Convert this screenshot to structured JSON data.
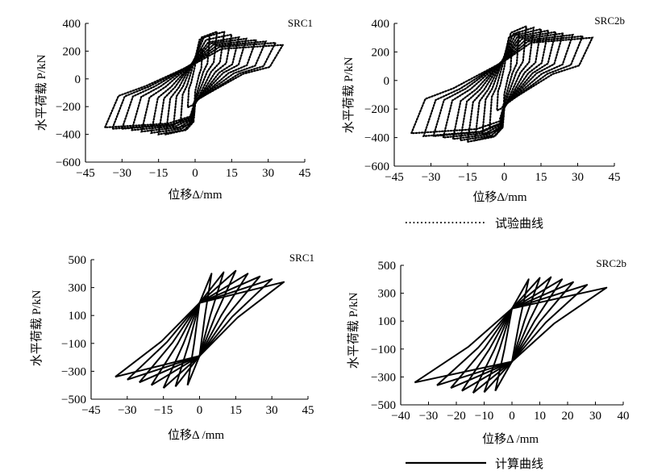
{
  "chart_data": [
    {
      "type": "line",
      "panel": "top-left",
      "title": "SRC1",
      "xlabel": "位移Δ/mm",
      "ylabel": "水平荷载 P/kN",
      "xlim": [
        -45,
        45
      ],
      "ylim": [
        -600,
        400
      ],
      "xticks": [
        "−45",
        "−30",
        "−15",
        "0",
        "15",
        "30",
        "45"
      ],
      "yticks": [
        "−600",
        "−400",
        "−200",
        "0",
        "200",
        "400"
      ],
      "style": "dotted",
      "series_name": "试验曲线",
      "cycles": [
        {
          "xmax": 3,
          "xmin": -3,
          "fpos": 215,
          "fneg": -205
        },
        {
          "xmax": 6,
          "xmin": -6,
          "fpos": 320,
          "fneg": -320
        },
        {
          "xmax": 9,
          "xmin": -9,
          "fpos": 340,
          "fneg": -360
        },
        {
          "xmax": 12,
          "xmin": -12,
          "fpos": 340,
          "fneg": -400
        },
        {
          "xmax": 15,
          "xmin": -15,
          "fpos": 320,
          "fneg": -400
        },
        {
          "xmax": 18,
          "xmin": -18,
          "fpos": 300,
          "fneg": -390
        },
        {
          "xmax": 21,
          "xmin": -22,
          "fpos": 290,
          "fneg": -380
        },
        {
          "xmax": 25,
          "xmin": -26,
          "fpos": 280,
          "fneg": -370
        },
        {
          "xmax": 29,
          "xmin": -30,
          "fpos": 270,
          "fneg": -360
        },
        {
          "xmax": 33,
          "xmin": -34,
          "fpos": 260,
          "fneg": -360
        },
        {
          "xmax": 36,
          "xmin": -37,
          "fpos": 245,
          "fneg": -350
        }
      ]
    },
    {
      "type": "line",
      "panel": "top-right",
      "title": "SRC2b",
      "xlabel": "位移Δ/mm",
      "ylabel": "水平荷载 P/kN",
      "xlim": [
        -45,
        45
      ],
      "ylim": [
        -600,
        400
      ],
      "xticks": [
        "−45",
        "−30",
        "−15",
        "0",
        "15",
        "30",
        "45"
      ],
      "yticks": [
        "−600",
        "−400",
        "−200",
        "0",
        "200",
        "400"
      ],
      "style": "dotted",
      "series_name": "试验曲线",
      "cycles": [
        {
          "xmax": 3,
          "xmin": -3,
          "fpos": 210,
          "fneg": -210
        },
        {
          "xmax": 6,
          "xmin": -6,
          "fpos": 340,
          "fneg": -330
        },
        {
          "xmax": 9,
          "xmin": -9,
          "fpos": 380,
          "fneg": -380
        },
        {
          "xmax": 12,
          "xmin": -12,
          "fpos": 370,
          "fneg": -420
        },
        {
          "xmax": 15,
          "xmin": -15,
          "fpos": 360,
          "fneg": -430
        },
        {
          "xmax": 18,
          "xmin": -18,
          "fpos": 350,
          "fneg": -420
        },
        {
          "xmax": 21,
          "xmin": -21,
          "fpos": 340,
          "fneg": -410
        },
        {
          "xmax": 24,
          "xmin": -25,
          "fpos": 330,
          "fneg": -400
        },
        {
          "xmax": 28,
          "xmin": -29,
          "fpos": 320,
          "fneg": -390
        },
        {
          "xmax": 32,
          "xmin": -33,
          "fpos": 310,
          "fneg": -390
        },
        {
          "xmax": 36,
          "xmin": -38,
          "fpos": 300,
          "fneg": -370
        }
      ]
    },
    {
      "type": "line",
      "panel": "bottom-left",
      "title": "SRC1",
      "xlabel": "位移Δ /mm",
      "ylabel": "水平荷载 P/kN",
      "xlim": [
        -45,
        45
      ],
      "ylim": [
        -500,
        500
      ],
      "xticks": [
        "−45",
        "−30",
        "−15",
        "0",
        "15",
        "30",
        "45"
      ],
      "yticks": [
        "500",
        "300",
        "100",
        "−100",
        "−300",
        "−500"
      ],
      "style": "solid",
      "series_name": "计算曲线",
      "cycles": [
        {
          "xmax": 5,
          "xmin": -5,
          "fpos": 400,
          "fneg": -400
        },
        {
          "xmax": 10,
          "xmin": -10,
          "fpos": 410,
          "fneg": -410
        },
        {
          "xmax": 15,
          "xmin": -15,
          "fpos": 420,
          "fneg": -420
        },
        {
          "xmax": 20,
          "xmin": -20,
          "fpos": 400,
          "fneg": -400
        },
        {
          "xmax": 25,
          "xmin": -25,
          "fpos": 380,
          "fneg": -380
        },
        {
          "xmax": 30,
          "xmin": -30,
          "fpos": 360,
          "fneg": -360
        },
        {
          "xmax": 35,
          "xmin": -35,
          "fpos": 340,
          "fneg": -340
        }
      ]
    },
    {
      "type": "line",
      "panel": "bottom-right",
      "title": "SRC2b",
      "xlabel": "位移Δ /mm",
      "ylabel": "水平荷载 P/kN",
      "xlim": [
        -40,
        40
      ],
      "ylim": [
        -500,
        500
      ],
      "xticks": [
        "−40",
        "−30",
        "−20",
        "−10",
        "0",
        "10",
        "20",
        "30",
        "40"
      ],
      "yticks": [
        "500",
        "300",
        "100",
        "−100",
        "−300",
        "−500"
      ],
      "style": "solid",
      "series_name": "计算曲线",
      "cycles": [
        {
          "xmax": 6,
          "xmin": -6,
          "fpos": 400,
          "fneg": -400
        },
        {
          "xmax": 10,
          "xmin": -10,
          "fpos": 410,
          "fneg": -410
        },
        {
          "xmax": 14,
          "xmin": -14,
          "fpos": 415,
          "fneg": -415
        },
        {
          "xmax": 18,
          "xmin": -18,
          "fpos": 400,
          "fneg": -400
        },
        {
          "xmax": 22,
          "xmin": -22,
          "fpos": 380,
          "fneg": -380
        },
        {
          "xmax": 27,
          "xmin": -27,
          "fpos": 360,
          "fneg": -360
        },
        {
          "xmax": 34,
          "xmin": -35,
          "fpos": 340,
          "fneg": -340
        }
      ]
    }
  ],
  "legend": {
    "test_label": "试验曲线",
    "calc_label": "计算曲线"
  }
}
